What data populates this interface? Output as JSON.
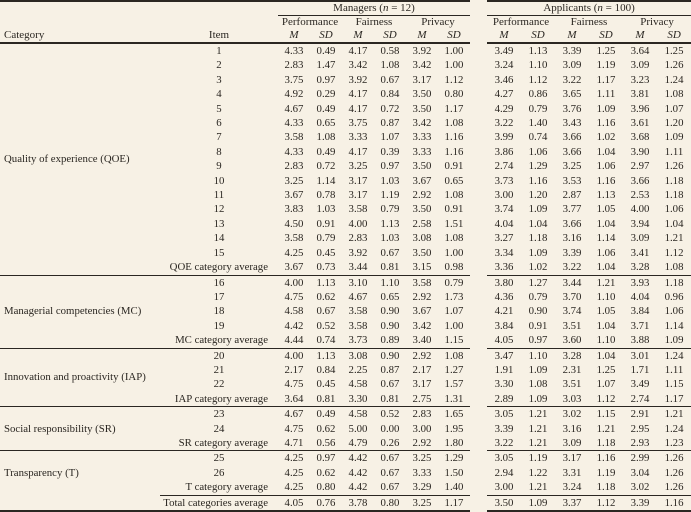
{
  "page": {
    "background": "#f7f1e5",
    "text_color": "#2a2621",
    "rule_color": "#2b2722"
  },
  "table": {
    "column_headers": {
      "category": "Category",
      "item": "Item"
    },
    "groups": [
      {
        "name_prefix": "Managers (",
        "n_symbol": "n",
        "name_suffix": " = 12)",
        "subgroups": [
          "Performance",
          "Fairness",
          "Privacy"
        ],
        "stats": [
          "M",
          "SD"
        ]
      },
      {
        "name_prefix": "Applicants (",
        "n_symbol": "n",
        "name_suffix": " = 100)",
        "subgroups": [
          "Performance",
          "Fairness",
          "Privacy"
        ],
        "stats": [
          "M",
          "SD"
        ]
      }
    ],
    "sections": [
      {
        "category": "Quality of experience (QOE)",
        "divider_after": true,
        "rows": [
          [
            "1",
            "4.33",
            "0.49",
            "4.17",
            "0.58",
            "3.92",
            "1.00",
            "3.49",
            "1.13",
            "3.39",
            "1.25",
            "3.64",
            "1.25"
          ],
          [
            "2",
            "2.83",
            "1.47",
            "3.42",
            "1.08",
            "3.42",
            "1.00",
            "3.24",
            "1.10",
            "3.09",
            "1.19",
            "3.09",
            "1.26"
          ],
          [
            "3",
            "3.75",
            "0.97",
            "3.92",
            "0.67",
            "3.17",
            "1.12",
            "3.46",
            "1.12",
            "3.22",
            "1.17",
            "3.23",
            "1.24"
          ],
          [
            "4",
            "4.92",
            "0.29",
            "4.17",
            "0.84",
            "3.50",
            "0.80",
            "4.27",
            "0.86",
            "3.65",
            "1.11",
            "3.81",
            "1.08"
          ],
          [
            "5",
            "4.67",
            "0.49",
            "4.17",
            "0.72",
            "3.50",
            "1.17",
            "4.29",
            "0.79",
            "3.76",
            "1.09",
            "3.96",
            "1.07"
          ],
          [
            "6",
            "4.33",
            "0.65",
            "3.75",
            "0.87",
            "3.42",
            "1.08",
            "3.22",
            "1.40",
            "3.43",
            "1.16",
            "3.61",
            "1.20"
          ],
          [
            "7",
            "3.58",
            "1.08",
            "3.33",
            "1.07",
            "3.33",
            "1.16",
            "3.99",
            "0.74",
            "3.66",
            "1.02",
            "3.68",
            "1.09"
          ],
          [
            "8",
            "4.33",
            "0.49",
            "4.17",
            "0.39",
            "3.33",
            "1.16",
            "3.86",
            "1.06",
            "3.66",
            "1.04",
            "3.90",
            "1.11"
          ],
          [
            "9",
            "2.83",
            "0.72",
            "3.25",
            "0.97",
            "3.50",
            "0.91",
            "2.74",
            "1.29",
            "3.25",
            "1.06",
            "2.97",
            "1.26"
          ],
          [
            "10",
            "3.25",
            "1.14",
            "3.17",
            "1.03",
            "3.67",
            "0.65",
            "3.73",
            "1.16",
            "3.53",
            "1.16",
            "3.66",
            "1.18"
          ],
          [
            "11",
            "3.67",
            "0.78",
            "3.17",
            "1.19",
            "2.92",
            "1.08",
            "3.00",
            "1.20",
            "2.87",
            "1.13",
            "2.53",
            "1.18"
          ],
          [
            "12",
            "3.83",
            "1.03",
            "3.58",
            "0.79",
            "3.50",
            "0.91",
            "3.74",
            "1.09",
            "3.77",
            "1.05",
            "4.00",
            "1.06"
          ],
          [
            "13",
            "4.50",
            "0.91",
            "4.00",
            "1.13",
            "2.58",
            "1.51",
            "4.04",
            "1.04",
            "3.66",
            "1.04",
            "3.94",
            "1.04"
          ],
          [
            "14",
            "3.58",
            "0.79",
            "2.83",
            "1.03",
            "3.08",
            "1.08",
            "3.27",
            "1.18",
            "3.16",
            "1.14",
            "3.09",
            "1.21"
          ],
          [
            "15",
            "4.25",
            "0.45",
            "3.92",
            "0.67",
            "3.50",
            "1.00",
            "3.34",
            "1.09",
            "3.39",
            "1.06",
            "3.41",
            "1.12"
          ]
        ],
        "average": [
          "QOE category average",
          "3.67",
          "0.73",
          "3.44",
          "0.81",
          "3.15",
          "0.98",
          "3.36",
          "1.02",
          "3.22",
          "1.04",
          "3.28",
          "1.08"
        ]
      },
      {
        "category": "Managerial competencies (MC)",
        "divider_after": true,
        "rows": [
          [
            "16",
            "4.00",
            "1.13",
            "3.10",
            "1.10",
            "3.58",
            "0.79",
            "3.80",
            "1.27",
            "3.44",
            "1.21",
            "3.93",
            "1.18"
          ],
          [
            "17",
            "4.75",
            "0.62",
            "4.67",
            "0.65",
            "2.92",
            "1.73",
            "4.36",
            "0.79",
            "3.70",
            "1.10",
            "4.04",
            "0.96"
          ],
          [
            "18",
            "4.58",
            "0.67",
            "3.58",
            "0.90",
            "3.67",
            "1.07",
            "4.21",
            "0.90",
            "3.74",
            "1.05",
            "3.84",
            "1.06"
          ],
          [
            "19",
            "4.42",
            "0.52",
            "3.58",
            "0.90",
            "3.42",
            "1.00",
            "3.84",
            "0.91",
            "3.51",
            "1.04",
            "3.71",
            "1.14"
          ]
        ],
        "average": [
          "MC category average",
          "4.44",
          "0.74",
          "3.73",
          "0.89",
          "3.40",
          "1.15",
          "4.05",
          "0.97",
          "3.60",
          "1.10",
          "3.88",
          "1.09"
        ]
      },
      {
        "category": "Innovation and proactivity (IAP)",
        "divider_after": true,
        "rows": [
          [
            "20",
            "4.00",
            "1.13",
            "3.08",
            "0.90",
            "2.92",
            "1.08",
            "3.47",
            "1.10",
            "3.28",
            "1.04",
            "3.01",
            "1.24"
          ],
          [
            "21",
            "2.17",
            "0.84",
            "2.25",
            "0.87",
            "2.17",
            "1.27",
            "1.91",
            "1.09",
            "2.31",
            "1.25",
            "1.71",
            "1.11"
          ],
          [
            "22",
            "4.75",
            "0.45",
            "4.58",
            "0.67",
            "3.17",
            "1.57",
            "3.30",
            "1.08",
            "3.51",
            "1.07",
            "3.49",
            "1.15"
          ]
        ],
        "average": [
          "IAP category average",
          "3.64",
          "0.81",
          "3.30",
          "0.81",
          "2.75",
          "1.31",
          "2.89",
          "1.09",
          "3.03",
          "1.12",
          "2.74",
          "1.17"
        ]
      },
      {
        "category": "Social responsibility (SR)",
        "divider_after": true,
        "rows": [
          [
            "23",
            "4.67",
            "0.49",
            "4.58",
            "0.52",
            "2.83",
            "1.65",
            "3.05",
            "1.21",
            "3.02",
            "1.15",
            "2.91",
            "1.21"
          ],
          [
            "24",
            "4.75",
            "0.62",
            "5.00",
            "0.00",
            "3.00",
            "1.95",
            "3.39",
            "1.21",
            "3.16",
            "1.21",
            "2.95",
            "1.24"
          ]
        ],
        "average": [
          "SR category average",
          "4.71",
          "0.56",
          "4.79",
          "0.26",
          "2.92",
          "1.80",
          "3.22",
          "1.21",
          "3.09",
          "1.18",
          "2.93",
          "1.23"
        ]
      },
      {
        "category": "Transparency (T)",
        "divider_after": false,
        "rows": [
          [
            "25",
            "4.25",
            "0.97",
            "4.42",
            "0.67",
            "3.25",
            "1.29",
            "3.05",
            "1.19",
            "3.17",
            "1.16",
            "2.99",
            "1.26"
          ],
          [
            "26",
            "4.25",
            "0.62",
            "4.42",
            "0.67",
            "3.33",
            "1.50",
            "2.94",
            "1.22",
            "3.31",
            "1.19",
            "3.04",
            "1.26"
          ]
        ],
        "average": [
          "T category average",
          "4.25",
          "0.80",
          "4.42",
          "0.67",
          "3.29",
          "1.40",
          "3.00",
          "1.21",
          "3.24",
          "1.18",
          "3.02",
          "1.26"
        ]
      }
    ],
    "total": [
      "Total categories average",
      "4.05",
      "0.76",
      "3.78",
      "0.80",
      "3.25",
      "1.17",
      "3.50",
      "1.09",
      "3.37",
      "1.12",
      "3.39",
      "1.16"
    ]
  }
}
